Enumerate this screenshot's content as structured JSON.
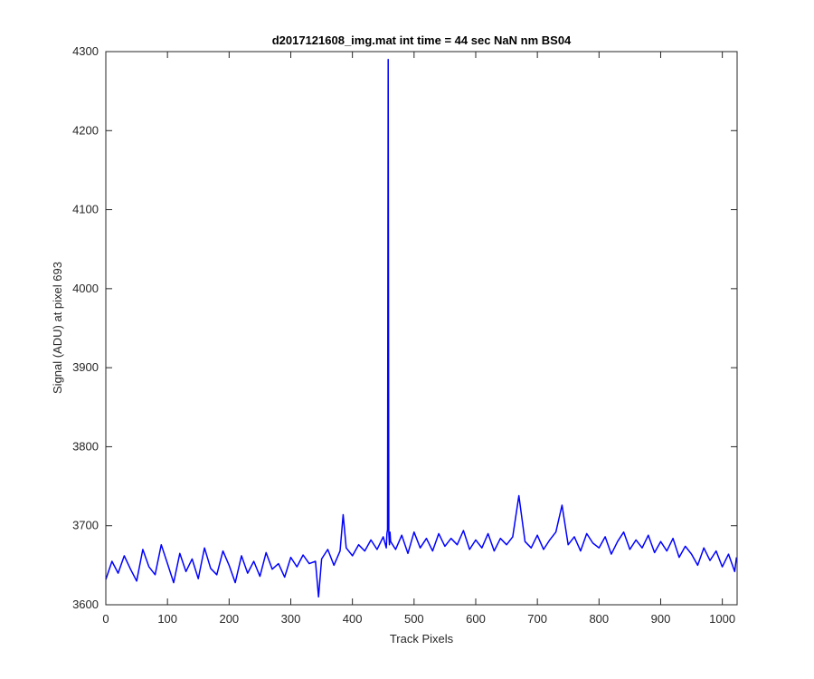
{
  "chart_data": {
    "type": "line",
    "title": "d2017121608_img.mat int time = 44 sec  NaN nm BS04",
    "xlabel": "Track Pixels",
    "ylabel": "Signal (ADU) at pixel 693",
    "xlim": [
      0,
      1024
    ],
    "ylim": [
      3600,
      4300
    ],
    "xticks": [
      0,
      100,
      200,
      300,
      400,
      500,
      600,
      700,
      800,
      900,
      1000
    ],
    "yticks": [
      3600,
      3700,
      3800,
      3900,
      4000,
      4100,
      4200,
      4300
    ],
    "grid": false,
    "legend": "none",
    "series": [
      {
        "color": "#0000ff",
        "x": [
          0,
          10,
          20,
          30,
          40,
          50,
          60,
          70,
          80,
          90,
          100,
          110,
          120,
          130,
          140,
          150,
          160,
          170,
          180,
          190,
          200,
          210,
          220,
          230,
          240,
          250,
          260,
          270,
          280,
          290,
          300,
          310,
          320,
          330,
          340,
          345,
          350,
          360,
          370,
          380,
          385,
          390,
          400,
          410,
          420,
          430,
          440,
          450,
          455,
          456,
          457,
          458,
          459,
          460,
          461,
          462,
          470,
          480,
          490,
          500,
          510,
          520,
          530,
          540,
          550,
          560,
          570,
          580,
          590,
          600,
          610,
          620,
          630,
          640,
          650,
          660,
          670,
          680,
          690,
          700,
          710,
          720,
          730,
          740,
          750,
          760,
          770,
          780,
          790,
          800,
          810,
          820,
          830,
          840,
          850,
          860,
          870,
          880,
          890,
          900,
          910,
          920,
          930,
          940,
          950,
          960,
          970,
          980,
          990,
          1000,
          1010,
          1020,
          1023
        ],
        "y": [
          3632,
          3655,
          3640,
          3662,
          3645,
          3630,
          3670,
          3648,
          3638,
          3676,
          3652,
          3628,
          3665,
          3642,
          3658,
          3633,
          3672,
          3646,
          3638,
          3668,
          3650,
          3628,
          3662,
          3640,
          3655,
          3636,
          3666,
          3645,
          3652,
          3635,
          3660,
          3648,
          3663,
          3652,
          3655,
          3610,
          3658,
          3670,
          3650,
          3668,
          3714,
          3672,
          3662,
          3676,
          3668,
          3682,
          3670,
          3686,
          3672,
          3690,
          3695,
          4290,
          3690,
          3676,
          3692,
          3680,
          3670,
          3688,
          3665,
          3692,
          3672,
          3684,
          3668,
          3690,
          3674,
          3684,
          3676,
          3694,
          3670,
          3682,
          3672,
          3690,
          3668,
          3684,
          3676,
          3686,
          3738,
          3680,
          3672,
          3688,
          3670,
          3682,
          3692,
          3726,
          3676,
          3686,
          3668,
          3690,
          3678,
          3672,
          3686,
          3664,
          3680,
          3692,
          3670,
          3682,
          3672,
          3688,
          3666,
          3680,
          3668,
          3684,
          3660,
          3674,
          3664,
          3650,
          3672,
          3656,
          3668,
          3648,
          3664,
          3642,
          3660
        ]
      }
    ]
  }
}
